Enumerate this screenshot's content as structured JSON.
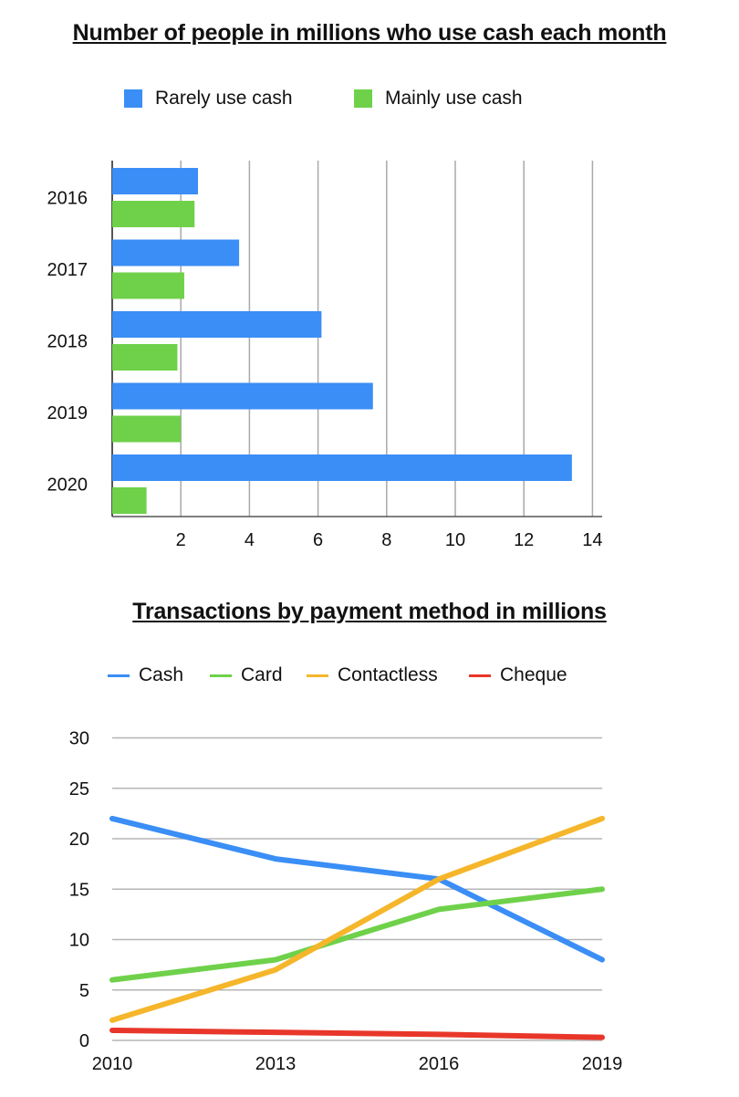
{
  "chart_data": [
    {
      "type": "bar",
      "orientation": "horizontal",
      "title": "Number of people in millions who use cash each month",
      "categories": [
        "2016",
        "2017",
        "2018",
        "2019",
        "2020"
      ],
      "series": [
        {
          "name": "Rarely use cash",
          "color": "#3a8ef5",
          "values": [
            2.5,
            3.7,
            6.1,
            7.6,
            13.4
          ]
        },
        {
          "name": "Mainly use cash",
          "color": "#6fd14a",
          "values": [
            2.4,
            2.1,
            1.9,
            2.0,
            1.0
          ]
        }
      ],
      "xticks": [
        "2",
        "4",
        "6",
        "8",
        "10",
        "12",
        "14"
      ],
      "xlim": [
        0,
        14
      ],
      "grid": true,
      "legend": "top"
    },
    {
      "type": "line",
      "title": "Transactions by payment method in millions",
      "x": [
        "2010",
        "2013",
        "2016",
        "2019"
      ],
      "series": [
        {
          "name": "Cash",
          "color": "#3a8ef5",
          "values": [
            22,
            18,
            16,
            8
          ]
        },
        {
          "name": "Card",
          "color": "#6fd14a",
          "values": [
            6,
            8,
            13,
            15
          ]
        },
        {
          "name": "Contactless",
          "color": "#f5b62b",
          "values": [
            2,
            7,
            16,
            22
          ]
        },
        {
          "name": "Cheque",
          "color": "#e8372a",
          "values": [
            1,
            0.8,
            0.6,
            0.3
          ]
        }
      ],
      "yticks": [
        "0",
        "5",
        "10",
        "15",
        "20",
        "25",
        "30"
      ],
      "ylim": [
        0,
        30
      ],
      "grid": true,
      "legend": "top"
    }
  ]
}
